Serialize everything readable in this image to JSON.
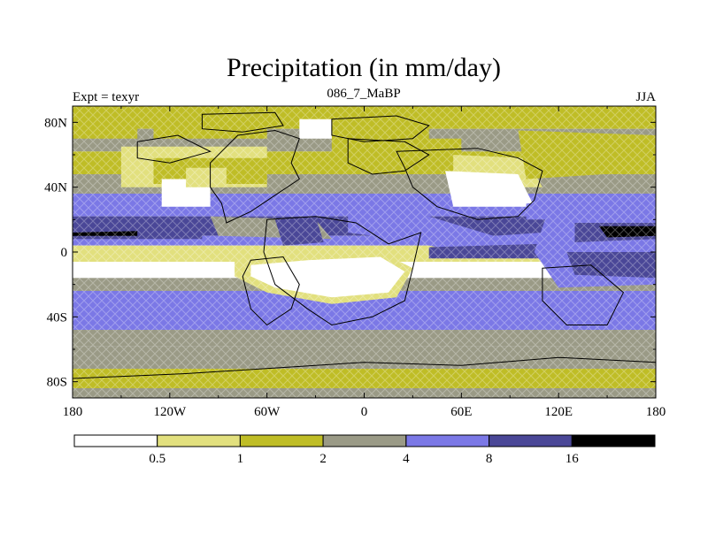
{
  "chart_data": {
    "type": "heatmap",
    "title": "Precipitation (in mm/day)",
    "subtitle_left": "Expt = texyr",
    "subtitle_center": "086_7_MaBP",
    "subtitle_right": "JJA",
    "xlabel": "",
    "ylabel": "",
    "xlim": [
      -180,
      180
    ],
    "ylim": [
      -90,
      90
    ],
    "x_ticks": [
      {
        "value": -180,
        "label": "180"
      },
      {
        "value": -120,
        "label": "120W"
      },
      {
        "value": -60,
        "label": "60W"
      },
      {
        "value": 0,
        "label": "0"
      },
      {
        "value": 60,
        "label": "60E"
      },
      {
        "value": 120,
        "label": "120E"
      },
      {
        "value": 180,
        "label": "180"
      }
    ],
    "y_ticks": [
      {
        "value": 80,
        "label": "80N"
      },
      {
        "value": 40,
        "label": "40N"
      },
      {
        "value": 0,
        "label": "0"
      },
      {
        "value": -40,
        "label": "40S"
      },
      {
        "value": -80,
        "label": "80S"
      }
    ],
    "colorbar": {
      "levels": [
        "0.5",
        "1",
        "2",
        "4",
        "8",
        "16"
      ],
      "colors": [
        "#ffffff",
        "#e2e07e",
        "#bfbd26",
        "#9a9a86",
        "#7b78e6",
        "#4a4797",
        "#000000"
      ]
    },
    "land_color": "#000000",
    "grid": false
  }
}
